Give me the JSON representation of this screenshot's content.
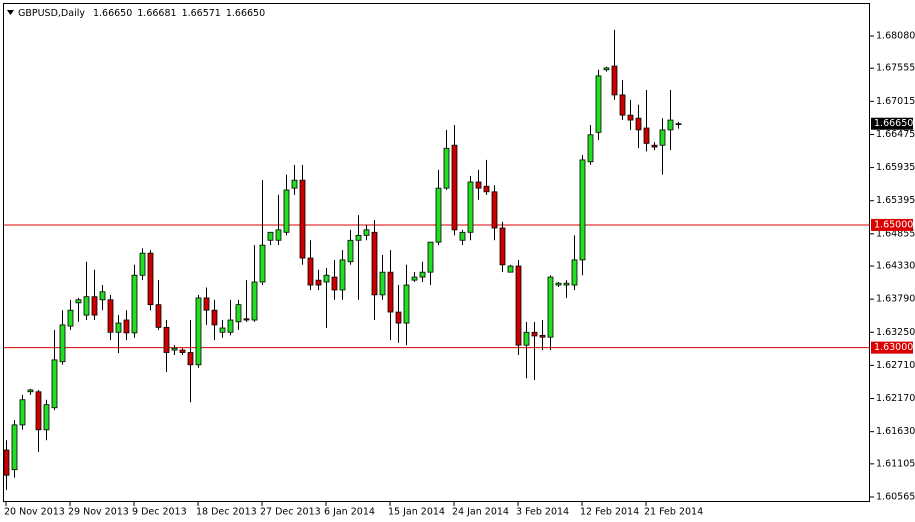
{
  "chart_data": {
    "type": "candlestick",
    "title": "GBPUSD,Daily",
    "ohlc_info": [
      "1.66650",
      "1.66681",
      "1.66571",
      "1.66650"
    ],
    "categories": [
      "20 Nov 2013",
      null,
      null,
      null,
      null,
      null,
      null,
      null,
      "29 Nov 2013",
      null,
      null,
      null,
      null,
      null,
      null,
      null,
      "9 Dec 2013",
      null,
      null,
      null,
      null,
      null,
      null,
      null,
      "18 Dec 2013",
      null,
      null,
      null,
      null,
      null,
      null,
      null,
      "27 Dec 2013",
      null,
      null,
      null,
      null,
      null,
      null,
      null,
      "6 Jan 2014",
      null,
      null,
      null,
      null,
      null,
      null,
      null,
      "15 Jan 2014",
      null,
      null,
      null,
      null,
      null,
      null,
      null,
      "24 Jan 2014",
      null,
      null,
      null,
      null,
      null,
      null,
      null,
      "3 Feb 2014",
      null,
      null,
      null,
      null,
      null,
      null,
      null,
      "12 Feb 2014",
      null,
      null,
      null,
      null,
      null,
      null,
      null,
      "21 Feb 2014",
      null,
      null,
      null,
      null
    ],
    "open": [
      1.6133,
      1.6101,
      1.6174,
      1.6228,
      1.6228,
      1.6166,
      1.6202,
      1.6277,
      1.6335,
      1.6373,
      1.6353,
      1.6383,
      1.6378,
      1.6378,
      1.6325,
      1.6345,
      1.6324,
      1.6418,
      1.6454,
      1.637,
      1.6333,
      1.6296,
      1.6296,
      1.6292,
      1.6272,
      1.6381,
      1.6361,
      1.6325,
      1.6325,
      1.6342,
      1.6347,
      1.6345,
      1.6407,
      1.6475,
      1.6475,
      1.6488,
      1.656,
      1.6573,
      1.6446,
      1.641,
      1.6407,
      1.6415,
      1.6394,
      1.644,
      1.6475,
      1.6483,
      1.6488,
      1.6386,
      1.6423,
      1.6358,
      1.634,
      1.641,
      1.6415,
      1.6423,
      1.6472,
      1.656,
      1.663,
      1.6475,
      1.6488,
      1.657,
      1.6563,
      1.6554,
      1.6495,
      1.6423,
      1.6433,
      1.6304,
      1.6325,
      1.632,
      1.6317,
      1.6402,
      1.6402,
      1.6402,
      1.6443,
      1.6603,
      1.6651,
      1.6753,
      1.6759,
      1.6712,
      1.6679,
      1.6674,
      1.6658,
      1.663,
      1.663,
      1.6655,
      1.6665
    ],
    "high": [
      1.6149,
      1.6182,
      1.6223,
      1.6233,
      1.6231,
      1.6215,
      1.6329,
      1.6361,
      1.6378,
      1.6381,
      1.644,
      1.6427,
      1.6402,
      1.6386,
      1.6353,
      1.6361,
      1.6435,
      1.6462,
      1.6459,
      1.641,
      1.6345,
      1.6304,
      1.6299,
      1.6345,
      1.6386,
      1.6398,
      1.6378,
      1.6345,
      1.6378,
      1.6378,
      1.641,
      1.6467,
      1.6573,
      1.6488,
      1.6549,
      1.6582,
      1.6598,
      1.6598,
      1.6475,
      1.6427,
      1.643,
      1.6443,
      1.6459,
      1.6492,
      1.6516,
      1.65,
      1.6508,
      1.6451,
      1.6459,
      1.6402,
      1.6435,
      1.6423,
      1.644,
      1.6472,
      1.659,
      1.6655,
      1.6663,
      1.6492,
      1.658,
      1.659,
      1.6606,
      1.6565,
      1.6505,
      1.6435,
      1.6443,
      1.6342,
      1.6342,
      1.6345,
      1.6418,
      1.6407,
      1.641,
      1.6483,
      1.6614,
      1.6663,
      1.6753,
      1.6758,
      1.6818,
      1.6736,
      1.6704,
      1.6696,
      1.672,
      1.6635,
      1.6674,
      1.672,
      1.66681
    ],
    "low": [
      1.6068,
      1.6088,
      1.6166,
      1.6223,
      1.613,
      1.6149,
      1.6198,
      1.6272,
      1.6329,
      1.6342,
      1.6345,
      1.6345,
      1.6361,
      1.6312,
      1.6291,
      1.6312,
      1.6316,
      1.641,
      1.6361,
      1.6329,
      1.626,
      1.6288,
      1.6288,
      1.6211,
      1.6267,
      1.6337,
      1.6312,
      1.6316,
      1.632,
      1.6329,
      1.6342,
      1.6342,
      1.6402,
      1.6467,
      1.6467,
      1.6483,
      1.6549,
      1.6435,
      1.6394,
      1.6394,
      1.6332,
      1.6378,
      1.6378,
      1.6435,
      1.6378,
      1.6475,
      1.6345,
      1.6378,
      1.6312,
      1.6308,
      1.6304,
      1.6407,
      1.6407,
      1.6402,
      1.6467,
      1.6557,
      1.6483,
      1.6467,
      1.6475,
      1.6541,
      1.6549,
      1.6475,
      1.6423,
      1.6423,
      1.6288,
      1.625,
      1.6247,
      1.6296,
      1.6296,
      1.6399,
      1.6381,
      1.6394,
      1.6418,
      1.6598,
      1.6638,
      1.675,
      1.6704,
      1.6671,
      1.6655,
      1.6625,
      1.662,
      1.6622,
      1.6582,
      1.6622,
      1.66571
    ],
    "close": [
      1.6092,
      1.6174,
      1.6215,
      1.6231,
      1.6166,
      1.6207,
      1.628,
      1.6337,
      1.6361,
      1.6378,
      1.6383,
      1.6353,
      1.6391,
      1.6325,
      1.634,
      1.6324,
      1.6418,
      1.6454,
      1.637,
      1.6333,
      1.6292,
      1.6299,
      1.6292,
      1.6272,
      1.6381,
      1.6361,
      1.6337,
      1.6332,
      1.6345,
      1.637,
      1.6345,
      1.6407,
      1.6467,
      1.6488,
      1.6492,
      1.6557,
      1.6573,
      1.6446,
      1.6402,
      1.6402,
      1.6418,
      1.6394,
      1.6443,
      1.6475,
      1.6483,
      1.6492,
      1.6386,
      1.6423,
      1.6358,
      1.634,
      1.6402,
      1.6415,
      1.6423,
      1.6472,
      1.656,
      1.6625,
      1.6492,
      1.6488,
      1.657,
      1.656,
      1.6554,
      1.6495,
      1.6435,
      1.6433,
      1.6304,
      1.6325,
      1.6319,
      1.6317,
      1.6415,
      1.6405,
      1.6405,
      1.6443,
      1.6606,
      1.6647,
      1.6743,
      1.6756,
      1.6712,
      1.6679,
      1.6671,
      1.6655,
      1.6633,
      1.6627,
      1.6655,
      1.6671,
      1.6665
    ],
    "up_color": "#22dd22",
    "down_color": "#cc0000",
    "ylim": [
      1.60483,
      1.68602
    ],
    "yticks": [
      {
        "value": 1.60565,
        "label": "1.60565"
      },
      {
        "value": 1.61105,
        "label": "1.61105"
      },
      {
        "value": 1.6163,
        "label": "1.61630"
      },
      {
        "value": 1.6217,
        "label": "1.62170"
      },
      {
        "value": 1.6271,
        "label": "1.62710"
      },
      {
        "value": 1.6325,
        "label": "1.63250"
      },
      {
        "value": 1.6379,
        "label": "1.63790"
      },
      {
        "value": 1.6433,
        "label": "1.64330"
      },
      {
        "value": 1.64855,
        "label": "1.64855"
      },
      {
        "value": 1.65395,
        "label": "1.65395"
      },
      {
        "value": 1.65935,
        "label": "1.65935"
      },
      {
        "value": 1.66475,
        "label": "1.66475"
      },
      {
        "value": 1.67015,
        "label": "1.67015"
      },
      {
        "value": 1.67555,
        "label": "1.67555"
      },
      {
        "value": 1.6808,
        "label": "1.68080"
      }
    ],
    "hlines": [
      {
        "value": 1.65,
        "label": "1.65000",
        "color": "#dd0000"
      },
      {
        "value": 1.63,
        "label": "1.63000",
        "color": "#dd0000"
      }
    ],
    "last_price": {
      "value": 1.6665,
      "label": "1.66650",
      "color": "#000000"
    }
  }
}
